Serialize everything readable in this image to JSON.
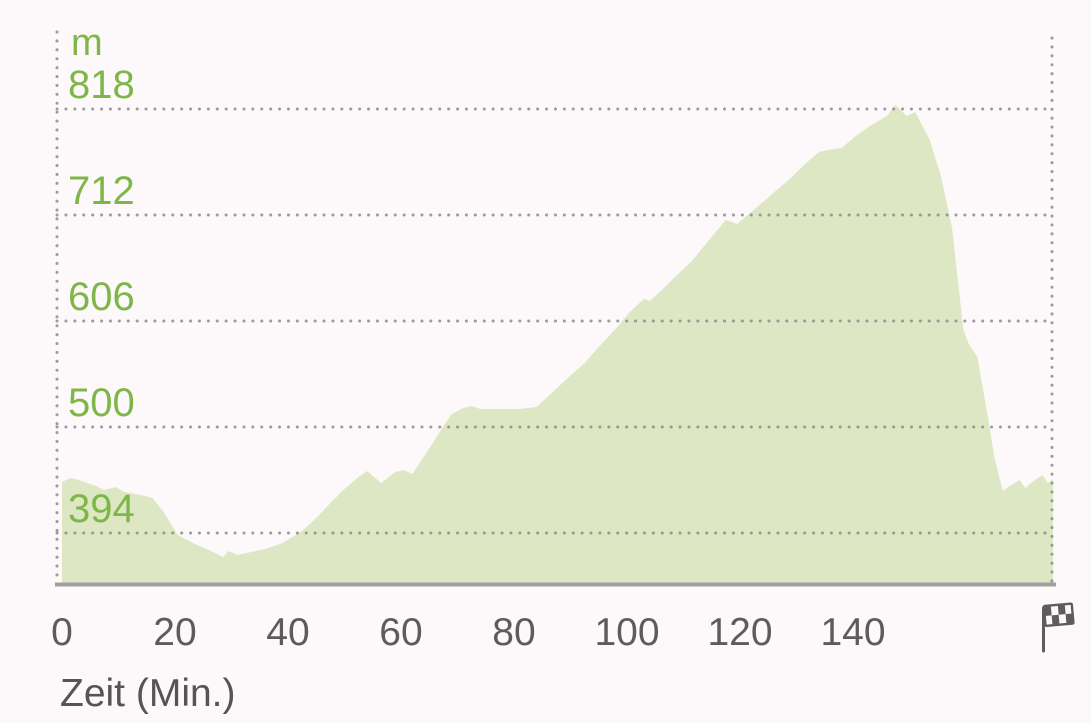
{
  "chart_data": {
    "type": "area",
    "title": "",
    "xlabel": "Zeit (Min.)",
    "ylabel_unit": "m",
    "x_ticks": [
      0,
      20,
      40,
      60,
      80,
      100,
      120,
      140
    ],
    "y_ticks": [
      818,
      712,
      606,
      500,
      394
    ],
    "xlim": [
      0,
      175.4
    ],
    "ylim": [
      342,
      895
    ],
    "grid": "dotted horizontal line per y tick, dotted vertical lines at plot start and end, solid gray baseline",
    "legend": "none",
    "end_marker_icon": "finish-flag-icon",
    "colors": {
      "area_fill": "#dde7c3",
      "y_label_green": "#7eb748",
      "x_label_gray": "#5c5c5c",
      "grid_dot_gray": "#8d8d8d",
      "baseline_gray": "#a0a0a0",
      "flag_gray": "#5d5d5d",
      "background": "#fdf8f9"
    },
    "series": {
      "points_time_min_elevation_m": [
        [
          0,
          445
        ],
        [
          1.5,
          449
        ],
        [
          3,
          447
        ],
        [
          6,
          441
        ],
        [
          7.5,
          437
        ],
        [
          9.5,
          440
        ],
        [
          11,
          435
        ],
        [
          14,
          432
        ],
        [
          16,
          429
        ],
        [
          18,
          415
        ],
        [
          20.5,
          392
        ],
        [
          23.5,
          383
        ],
        [
          26,
          377
        ],
        [
          28.5,
          370
        ],
        [
          29.5,
          376
        ],
        [
          31,
          372
        ],
        [
          33.5,
          375
        ],
        [
          36,
          378
        ],
        [
          39,
          384
        ],
        [
          40.5,
          389
        ],
        [
          42.5,
          396
        ],
        [
          45,
          409
        ],
        [
          47.5,
          424
        ],
        [
          50,
          438
        ],
        [
          52.5,
          450
        ],
        [
          54,
          456
        ],
        [
          56.5,
          444
        ],
        [
          59,
          455
        ],
        [
          60.5,
          457
        ],
        [
          62,
          453
        ],
        [
          64,
          470
        ],
        [
          66,
          487
        ],
        [
          67.5,
          501
        ],
        [
          69,
          513
        ],
        [
          71,
          519
        ],
        [
          72.5,
          521
        ],
        [
          74,
          518
        ],
        [
          77.5,
          518
        ],
        [
          81,
          518
        ],
        [
          84,
          520
        ],
        [
          86.5,
          533
        ],
        [
          89.5,
          549
        ],
        [
          92.5,
          564
        ],
        [
          95,
          580
        ],
        [
          98,
          598
        ],
        [
          100.5,
          615
        ],
        [
          103,
          628
        ],
        [
          104,
          626
        ],
        [
          106,
          636
        ],
        [
          108.5,
          650
        ],
        [
          111.5,
          666
        ],
        [
          113.5,
          680
        ],
        [
          116,
          697
        ],
        [
          117.5,
          707
        ],
        [
          119.5,
          703
        ],
        [
          122,
          715
        ],
        [
          124.5,
          727
        ],
        [
          126.5,
          737
        ],
        [
          129,
          749
        ],
        [
          131.5,
          763
        ],
        [
          134,
          775
        ],
        [
          135.5,
          777
        ],
        [
          138,
          779
        ],
        [
          140.5,
          791
        ],
        [
          143,
          801
        ],
        [
          146,
          811
        ],
        [
          147.5,
          822
        ],
        [
          149.5,
          811
        ],
        [
          151,
          815
        ],
        [
          153.5,
          788
        ],
        [
          155.5,
          752
        ],
        [
          157.5,
          700
        ],
        [
          158.5,
          650
        ],
        [
          159.5,
          598
        ],
        [
          160.5,
          583
        ],
        [
          162,
          570
        ],
        [
          163,
          538
        ],
        [
          164,
          506
        ],
        [
          165,
          470
        ],
        [
          166.5,
          436
        ],
        [
          168,
          442
        ],
        [
          169.5,
          447
        ],
        [
          170.5,
          439
        ],
        [
          172,
          446
        ],
        [
          173.5,
          452
        ],
        [
          174.5,
          444
        ],
        [
          175.4,
          448
        ]
      ]
    }
  }
}
